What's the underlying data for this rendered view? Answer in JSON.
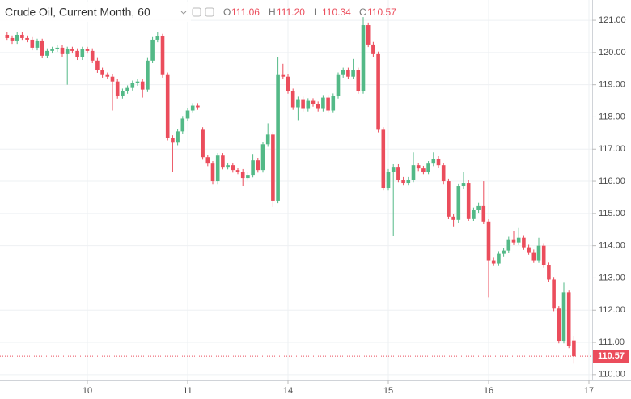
{
  "header": {
    "symbol": "Crude Oil, Current Month, 60",
    "ohlc_labels": [
      "O",
      "H",
      "L",
      "C"
    ],
    "ohlc_values": [
      "111.06",
      "111.20",
      "110.34",
      "110.57"
    ]
  },
  "chart_data": {
    "type": "candlestick",
    "categories": [
      null,
      null,
      null,
      null,
      null,
      null,
      null,
      null,
      null,
      null,
      null,
      null,
      null,
      null,
      null,
      null,
      "10",
      null,
      null,
      null,
      null,
      null,
      null,
      null,
      null,
      null,
      null,
      null,
      null,
      null,
      null,
      null,
      null,
      null,
      null,
      null,
      "11",
      null,
      null,
      null,
      null,
      null,
      null,
      null,
      null,
      null,
      null,
      null,
      null,
      null,
      null,
      null,
      null,
      null,
      null,
      null,
      "14",
      null,
      null,
      null,
      null,
      null,
      null,
      null,
      null,
      null,
      null,
      null,
      null,
      null,
      null,
      null,
      null,
      null,
      null,
      null,
      "15",
      null,
      null,
      null,
      null,
      null,
      null,
      null,
      null,
      null,
      null,
      null,
      null,
      null,
      null,
      null,
      null,
      null,
      null,
      null,
      "16",
      null,
      null,
      null,
      null,
      null,
      null,
      null,
      null,
      null,
      null,
      null,
      null,
      null,
      null,
      null,
      null,
      null,
      null,
      null,
      "17"
    ],
    "open": [
      120.55,
      120.45,
      120.35,
      120.55,
      120.45,
      120.4,
      120.15,
      120.35,
      119.9,
      120.05,
      120.1,
      120.15,
      119.95,
      120.1,
      120.05,
      119.85,
      120.1,
      120.05,
      119.75,
      119.45,
      119.3,
      119.25,
      119.1,
      118.65,
      118.8,
      118.9,
      119.05,
      119.1,
      118.85,
      119.75,
      120.4,
      120.5,
      119.3,
      117.35,
      117.2,
      117.55,
      117.95,
      118.2,
      118.35,
      117.6,
      116.75,
      116.55,
      116.0,
      116.8,
      116.45,
      116.5,
      116.35,
      116.3,
      116.1,
      116.2,
      116.65,
      116.35,
      117.15,
      117.45,
      115.4,
      119.3,
      119.25,
      118.8,
      118.3,
      118.55,
      118.25,
      118.5,
      118.4,
      118.25,
      118.6,
      118.2,
      118.65,
      119.3,
      119.45,
      119.25,
      119.45,
      118.8,
      120.85,
      120.25,
      119.95,
      117.6,
      115.8,
      116.3,
      116.45,
      116.05,
      115.95,
      116.05,
      116.5,
      116.4,
      116.3,
      116.55,
      116.7,
      116.5,
      116.0,
      114.9,
      114.8,
      115.85,
      115.95,
      114.85,
      115.1,
      115.25,
      114.75,
      113.55,
      113.45,
      113.75,
      113.85,
      114.2,
      114.1,
      114.25,
      113.95,
      113.8,
      113.55,
      114.0,
      113.4,
      112.95,
      112.05,
      111.05,
      112.55,
      111.06,
      null,
      null,
      null
    ],
    "high": [
      120.63,
      120.53,
      120.63,
      120.63,
      120.53,
      120.48,
      120.43,
      120.43,
      120.13,
      120.18,
      120.23,
      120.23,
      120.18,
      120.18,
      120.13,
      120.18,
      120.18,
      120.13,
      119.83,
      119.53,
      119.38,
      119.33,
      119.18,
      118.88,
      118.98,
      119.13,
      119.18,
      119.18,
      119.83,
      120.48,
      120.65,
      120.58,
      119.38,
      117.43,
      117.63,
      118.03,
      118.28,
      118.43,
      118.43,
      117.68,
      116.83,
      116.63,
      116.88,
      116.88,
      116.58,
      116.58,
      116.43,
      116.38,
      116.28,
      116.85,
      116.73,
      117.23,
      117.8,
      117.53,
      119.85,
      119.65,
      119.33,
      118.88,
      118.63,
      118.63,
      118.58,
      118.58,
      118.48,
      118.68,
      118.68,
      118.73,
      119.38,
      119.53,
      119.53,
      119.8,
      119.53,
      121.1,
      120.93,
      120.33,
      120.03,
      117.68,
      116.38,
      116.53,
      116.53,
      116.13,
      116.13,
      116.9,
      116.58,
      116.48,
      116.63,
      116.9,
      116.78,
      116.58,
      116.08,
      114.98,
      115.93,
      116.3,
      116.03,
      115.18,
      115.33,
      116.0,
      114.83,
      113.63,
      113.83,
      113.93,
      114.28,
      114.45,
      114.55,
      114.33,
      114.03,
      113.88,
      114.25,
      114.08,
      113.48,
      113.03,
      112.13,
      112.85,
      112.63,
      111.2,
      null,
      null,
      null
    ],
    "low": [
      120.37,
      120.27,
      120.27,
      120.37,
      120.32,
      120.07,
      120.07,
      119.82,
      119.82,
      119.97,
      120.02,
      119.87,
      119.0,
      119.97,
      119.77,
      119.77,
      119.97,
      119.67,
      119.37,
      119.22,
      119.17,
      118.2,
      118.57,
      118.57,
      118.72,
      118.82,
      118.97,
      118.6,
      118.77,
      119.67,
      120.32,
      119.22,
      117.27,
      116.3,
      117.12,
      117.47,
      117.87,
      118.12,
      118.22,
      116.67,
      116.47,
      115.92,
      115.92,
      116.37,
      116.37,
      116.27,
      116.22,
      115.85,
      116.02,
      116.12,
      116.27,
      116.27,
      117.07,
      115.2,
      115.32,
      119.17,
      118.72,
      118.22,
      117.9,
      118.17,
      118.17,
      118.32,
      118.17,
      118.17,
      118.12,
      118.12,
      118.57,
      119.22,
      119.17,
      119.17,
      118.72,
      118.72,
      120.17,
      119.87,
      117.52,
      115.72,
      115.72,
      114.3,
      115.97,
      115.87,
      115.87,
      115.97,
      116.32,
      116.22,
      116.22,
      116.47,
      116.42,
      115.92,
      114.82,
      114.6,
      114.72,
      115.77,
      114.77,
      114.77,
      115.02,
      114.67,
      112.4,
      113.37,
      113.37,
      113.67,
      113.77,
      114.02,
      114.02,
      113.87,
      113.72,
      113.47,
      113.47,
      113.32,
      112.87,
      111.97,
      110.97,
      110.97,
      110.82,
      110.34,
      null,
      null,
      null
    ],
    "close": [
      120.45,
      120.35,
      120.55,
      120.45,
      120.4,
      120.15,
      120.35,
      119.9,
      120.05,
      120.1,
      120.15,
      119.95,
      120.1,
      120.05,
      119.85,
      120.1,
      120.05,
      119.75,
      119.45,
      119.3,
      119.25,
      119.1,
      118.65,
      118.8,
      118.9,
      119.05,
      119.1,
      118.85,
      119.75,
      120.4,
      120.5,
      119.3,
      117.35,
      117.2,
      117.55,
      117.95,
      118.2,
      118.35,
      118.3,
      116.75,
      116.55,
      116.0,
      116.8,
      116.45,
      116.5,
      116.35,
      116.3,
      116.1,
      116.2,
      116.65,
      116.35,
      117.15,
      117.45,
      115.4,
      119.3,
      119.25,
      118.8,
      118.3,
      118.55,
      118.25,
      118.5,
      118.4,
      118.25,
      118.6,
      118.2,
      118.65,
      119.3,
      119.45,
      119.25,
      119.45,
      118.8,
      120.85,
      120.25,
      119.95,
      117.6,
      115.8,
      116.3,
      116.45,
      116.05,
      115.95,
      116.05,
      116.5,
      116.4,
      116.3,
      116.55,
      116.7,
      116.5,
      116.0,
      114.9,
      114.8,
      115.85,
      115.95,
      114.85,
      115.1,
      115.25,
      114.75,
      113.55,
      113.45,
      113.75,
      113.85,
      114.2,
      114.1,
      114.25,
      113.95,
      113.8,
      113.55,
      114.0,
      113.4,
      112.95,
      112.05,
      111.05,
      112.55,
      110.9,
      110.57,
      null,
      null,
      null
    ],
    "up_color": "#53b987",
    "down_color": "#eb4d5c",
    "ylim": [
      109.82,
      121.63
    ],
    "yticks": [
      {
        "value": 110,
        "label": "110.00"
      },
      {
        "value": 111,
        "label": "111.00"
      },
      {
        "value": 112,
        "label": "112.00"
      },
      {
        "value": 113,
        "label": "113.00"
      },
      {
        "value": 114,
        "label": "114.00"
      },
      {
        "value": 115,
        "label": "115.00"
      },
      {
        "value": 116,
        "label": "116.00"
      },
      {
        "value": 117,
        "label": "117.00"
      },
      {
        "value": 118,
        "label": "118.00"
      },
      {
        "value": 119,
        "label": "119.00"
      },
      {
        "value": 120,
        "label": "120.00"
      },
      {
        "value": 121,
        "label": "121.00"
      }
    ],
    "grid": true
  }
}
